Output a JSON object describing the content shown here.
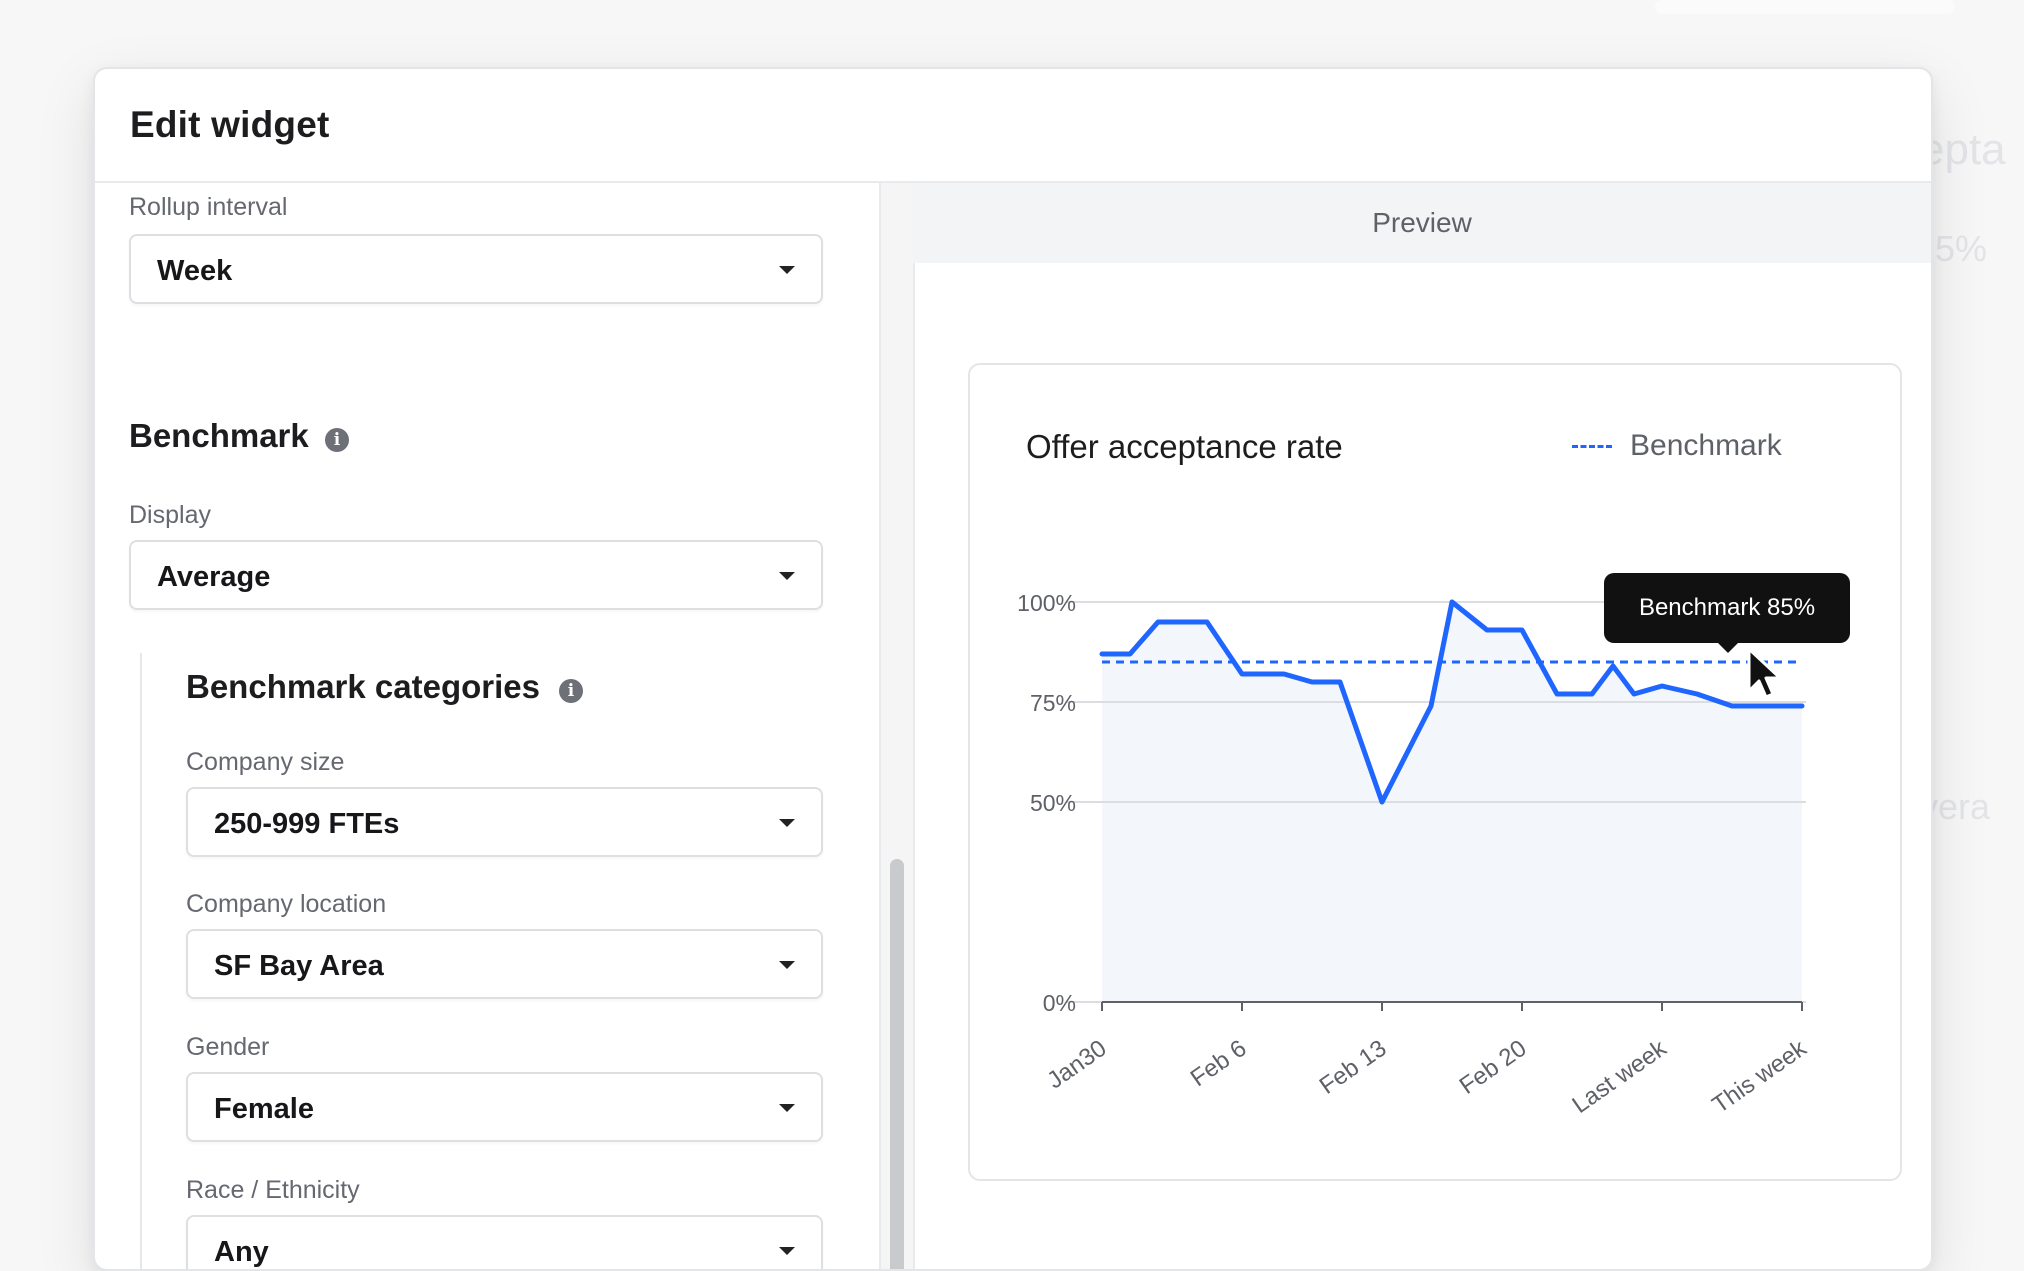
{
  "modal": {
    "title": "Edit widget"
  },
  "rollup": {
    "label": "Rollup interval",
    "value": "Week"
  },
  "benchmark": {
    "title": "Benchmark",
    "display_label": "Display",
    "display_value": "Average"
  },
  "categories": {
    "title": "Benchmark categories",
    "company_size": {
      "label": "Company size",
      "value": "250-999 FTEs"
    },
    "company_location": {
      "label": "Company location",
      "value": "SF Bay Area"
    },
    "gender": {
      "label": "Gender",
      "value": "Female"
    },
    "race": {
      "label": "Race / Ethnicity",
      "value": "Any"
    }
  },
  "preview": {
    "label": "Preview",
    "tooltip": "Benchmark 85%"
  },
  "colors": {
    "series": "#1f66ff",
    "fill": "#f3f6fb"
  },
  "chart_data": {
    "type": "line",
    "title": "Offer acceptance rate",
    "legend": "Benchmark",
    "legend_position": "top-right",
    "x_ticks": [
      "Jan30",
      "Feb 6",
      "Feb 13",
      "Feb 20",
      "Last week",
      "This week"
    ],
    "y_ticks": [
      "0%",
      "50%",
      "75%",
      "100%"
    ],
    "x": [
      0,
      0.4,
      0.8,
      1.0,
      1.5,
      2.0,
      2.6,
      3.0,
      3.4,
      4.0,
      4.7,
      5.0,
      5.5,
      6.0,
      6.5,
      7.0,
      7.3,
      7.6,
      8.0,
      8.5,
      9.0,
      9.5,
      10.0
    ],
    "series": [
      {
        "values": [
          87,
          87,
          95,
          95,
          95,
          82,
          82,
          80,
          80,
          50,
          74,
          100,
          93,
          93,
          77,
          77,
          84,
          77,
          79,
          77,
          74,
          74,
          74
        ]
      }
    ],
    "benchmark": 85,
    "xlim": [
      0,
      10
    ],
    "ylim": [
      0,
      100
    ],
    "area_fill": true,
    "grid": true
  }
}
